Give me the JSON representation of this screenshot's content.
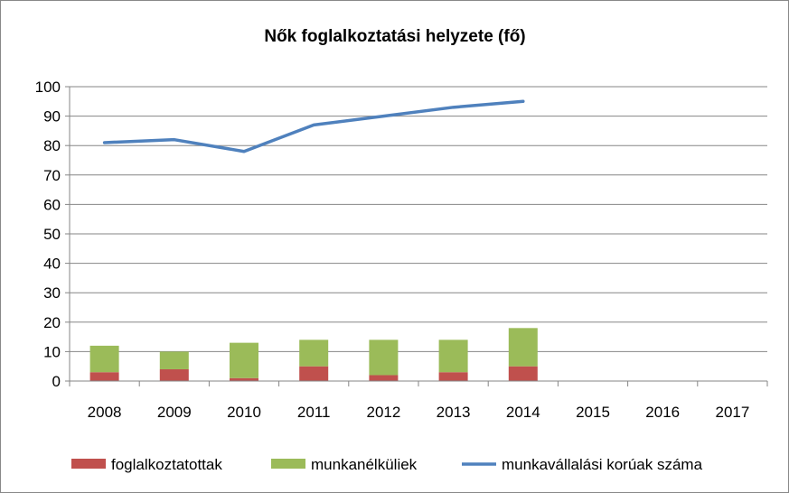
{
  "chart_data": {
    "type": "bar",
    "title": "Nők foglalkoztatási helyzete (fő)",
    "xlabel": "",
    "ylabel": "",
    "ylim": [
      0,
      100
    ],
    "y_ticks": [
      0,
      10,
      20,
      30,
      40,
      50,
      60,
      70,
      80,
      90,
      100
    ],
    "categories": [
      "2008",
      "2009",
      "2010",
      "2011",
      "2012",
      "2013",
      "2014",
      "2015",
      "2016",
      "2017"
    ],
    "stacked": true,
    "grid": true,
    "legend_position": "bottom",
    "series": [
      {
        "name": "foglalkoztatottak",
        "type": "bar",
        "color": "#c0504d",
        "values": [
          3,
          4,
          1,
          5,
          2,
          3,
          5,
          null,
          null,
          null
        ]
      },
      {
        "name": "munkanélküliek",
        "type": "bar",
        "color": "#9bbb59",
        "values": [
          9,
          6,
          12,
          9,
          12,
          11,
          13,
          null,
          null,
          null
        ]
      },
      {
        "name": "munkavállalási korúak száma",
        "type": "line",
        "color": "#4f81bd",
        "values": [
          81,
          82,
          78,
          87,
          90,
          93,
          95,
          null,
          null,
          null
        ]
      }
    ]
  }
}
